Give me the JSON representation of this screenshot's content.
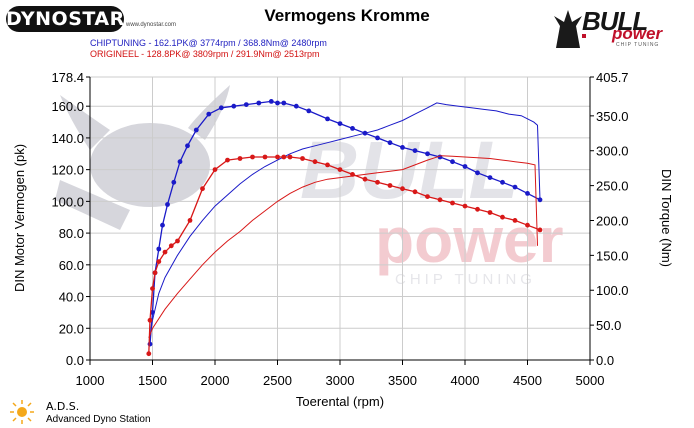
{
  "header": {
    "brand_logo_text": "DYNOSTAR",
    "brand_logo_sub": "www.dynostar.com",
    "title": "Vermogens Kromme",
    "legend": [
      {
        "text": "CHIPTUNING - 162.1PK@ 3774rpm / 368.8Nm@ 2480rpm",
        "color": "#2020c0"
      },
      {
        "text": "ORIGINEEL  - 128.8PK@ 3809rpm / 291.9Nm@ 2513rpm",
        "color": "#d21010"
      }
    ],
    "bull_logo": {
      "word1": "BULL",
      "word2": "power",
      "tag": "CHIP TUNING"
    }
  },
  "footer": {
    "ads_title": "A.D.S.",
    "ads_subtitle": "Advanced Dyno Station"
  },
  "watermark": {
    "word1": "BULL",
    "word2": "power",
    "tag": "CHIP TUNING"
  },
  "chart_data": {
    "type": "line",
    "xlabel": "Toerental (rpm)",
    "ylabel_left": "DIN Motor Vermogen (pk)",
    "ylabel_right": "DIN Torque (Nm)",
    "xlim": [
      1000,
      5000
    ],
    "ylim_left": [
      0,
      178.4
    ],
    "ylim_right": [
      0,
      405.7
    ],
    "x_ticks": [
      "1000",
      "1500",
      "2000",
      "2500",
      "3000",
      "3500",
      "4000",
      "4500",
      "5000"
    ],
    "y_left_ticks": [
      {
        "value": 0,
        "label": "0.0"
      },
      {
        "value": 20,
        "label": "20.0"
      },
      {
        "value": 40,
        "label": "40.0"
      },
      {
        "value": 60,
        "label": "60.0"
      },
      {
        "value": 80,
        "label": "80.0"
      },
      {
        "value": 100,
        "label": "100.0"
      },
      {
        "value": 120,
        "label": "120.0"
      },
      {
        "value": 140,
        "label": "140.0"
      },
      {
        "value": 160,
        "label": "160.0"
      },
      {
        "value": 178.4,
        "label": "178.4"
      }
    ],
    "y_right_ticks": [
      {
        "value": 0,
        "label": "0.0"
      },
      {
        "value": 50,
        "label": "50.0"
      },
      {
        "value": 100,
        "label": "100.0"
      },
      {
        "value": 150,
        "label": "150.0"
      },
      {
        "value": 200,
        "label": "200.0"
      },
      {
        "value": 250,
        "label": "250.0"
      },
      {
        "value": 300,
        "label": "300.0"
      },
      {
        "value": 350,
        "label": "350.0"
      },
      {
        "value": 405.7,
        "label": "405.7"
      }
    ],
    "grid": true,
    "colors": {
      "tuned": "#1a1ac8",
      "original": "#d81818"
    },
    "series": [
      {
        "name": "CHIPTUNING",
        "quantity": "torque",
        "axis": "left",
        "color": "#1a1ac8",
        "markers": true,
        "x": [
          1480,
          1500,
          1520,
          1550,
          1580,
          1620,
          1670,
          1720,
          1780,
          1850,
          1950,
          2050,
          2150,
          2250,
          2350,
          2450,
          2500,
          2550,
          2650,
          2750,
          2900,
          3000,
          3100,
          3200,
          3300,
          3400,
          3500,
          3600,
          3700,
          3800,
          3900,
          4000,
          4100,
          4200,
          4300,
          4400,
          4500,
          4600
        ],
        "y": [
          10,
          30,
          55,
          70,
          85,
          98,
          112,
          125,
          135,
          145,
          155,
          159,
          160,
          161,
          162,
          163,
          162,
          162,
          160,
          157,
          152,
          149,
          146,
          143,
          140,
          137,
          134,
          132,
          130,
          128,
          125,
          122,
          118,
          115,
          112,
          109,
          105,
          101
        ]
      },
      {
        "name": "CHIPTUNING",
        "quantity": "power",
        "axis": "left",
        "color": "#1a1ac8",
        "markers": false,
        "x": [
          1480,
          1500,
          1550,
          1600,
          1700,
          1800,
          1900,
          2000,
          2100,
          2200,
          2300,
          2400,
          2500,
          2600,
          2700,
          2800,
          2900,
          3000,
          3100,
          3200,
          3300,
          3400,
          3500,
          3600,
          3700,
          3774,
          3850,
          3950,
          4050,
          4150,
          4250,
          4350,
          4450,
          4550,
          4580,
          4600
        ],
        "y": [
          15,
          25,
          42,
          52,
          66,
          78,
          88,
          97,
          104,
          111,
          117,
          122,
          126,
          130,
          133,
          135,
          137,
          139,
          141,
          143,
          145,
          148,
          151,
          155,
          159,
          162.1,
          161,
          160,
          159,
          158,
          157,
          155,
          154,
          150,
          148,
          101
        ]
      },
      {
        "name": "ORIGINEEL",
        "quantity": "torque",
        "axis": "left",
        "color": "#d81818",
        "markers": true,
        "x": [
          1470,
          1480,
          1500,
          1520,
          1550,
          1600,
          1650,
          1700,
          1800,
          1900,
          2000,
          2100,
          2200,
          2300,
          2400,
          2500,
          2550,
          2600,
          2700,
          2800,
          2900,
          3000,
          3100,
          3200,
          3300,
          3400,
          3500,
          3600,
          3700,
          3800,
          3900,
          4000,
          4100,
          4200,
          4300,
          4400,
          4500,
          4600
        ],
        "y": [
          4,
          25,
          45,
          55,
          62,
          68,
          72,
          75,
          88,
          108,
          120,
          126,
          127,
          128,
          128,
          128,
          128,
          128,
          127,
          125,
          123,
          120,
          117,
          114,
          112,
          110,
          108,
          106,
          103,
          101,
          99,
          97,
          95,
          93,
          90,
          88,
          85,
          82
        ]
      },
      {
        "name": "ORIGINEEL",
        "quantity": "power",
        "axis": "left",
        "color": "#d81818",
        "markers": false,
        "x": [
          1470,
          1500,
          1600,
          1700,
          1800,
          1900,
          2000,
          2100,
          2200,
          2300,
          2400,
          2500,
          2600,
          2700,
          2800,
          2900,
          3000,
          3100,
          3200,
          3300,
          3400,
          3500,
          3600,
          3700,
          3809,
          3900,
          4000,
          4100,
          4200,
          4300,
          4400,
          4500,
          4560,
          4580
        ],
        "y": [
          14,
          20,
          32,
          42,
          51,
          60,
          68,
          75,
          81,
          88,
          94,
          100,
          105,
          109,
          112,
          114,
          115,
          116,
          117,
          118,
          119,
          120,
          123,
          126,
          128.8,
          128.5,
          128,
          127.5,
          127,
          126,
          125,
          124,
          123,
          72
        ]
      }
    ]
  }
}
